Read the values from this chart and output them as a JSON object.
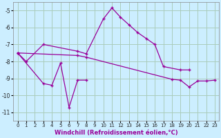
{
  "bg_color": "#cceeff",
  "grid_color": "#aaccbb",
  "line_color": "#990099",
  "xlabel": "Windchill (Refroidissement éolien,°C)",
  "ylim": [
    -11.5,
    -4.5
  ],
  "xlim": [
    -0.5,
    23.5
  ],
  "yticks": [
    -11,
    -10,
    -9,
    -8,
    -7,
    -6,
    -5
  ],
  "xticks": [
    0,
    1,
    2,
    3,
    4,
    5,
    6,
    7,
    8,
    9,
    10,
    11,
    12,
    13,
    14,
    15,
    16,
    17,
    18,
    19,
    20,
    21,
    22,
    23
  ],
  "line1_x": [
    0,
    1,
    3,
    7,
    8,
    10,
    11,
    12,
    13,
    14,
    15,
    16,
    17,
    19,
    20
  ],
  "line1_y": [
    -7.5,
    -8.0,
    -7.0,
    -7.4,
    -7.55,
    -5.5,
    -4.85,
    -5.4,
    -5.85,
    -6.3,
    -6.65,
    -7.0,
    -8.3,
    -8.5,
    -8.5
  ],
  "line2_x": [
    0,
    7,
    8,
    18,
    19,
    20,
    21,
    22,
    23
  ],
  "line2_y": [
    -7.5,
    -7.65,
    -7.75,
    -9.05,
    -9.1,
    -9.5,
    -9.15,
    -9.15,
    -9.1
  ],
  "line3_x": [
    0,
    3,
    4,
    5,
    6,
    7,
    8
  ],
  "line3_y": [
    -7.5,
    -9.3,
    -9.4,
    -8.1,
    -10.7,
    -9.1,
    -9.1
  ]
}
